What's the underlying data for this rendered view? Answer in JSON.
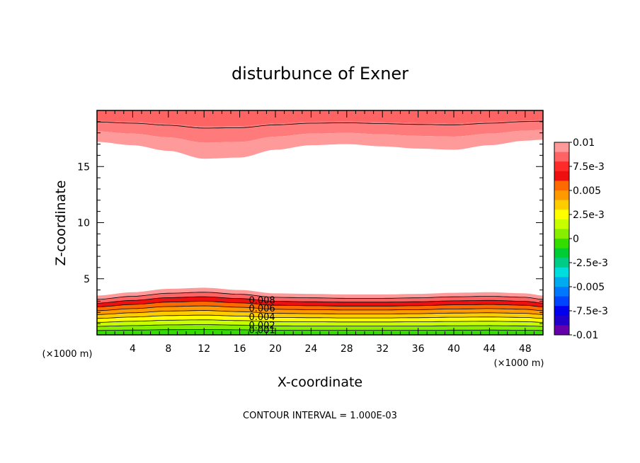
{
  "chart_data": {
    "type": "heatmap",
    "title": "disturbunce of Exner",
    "xlabel": "X-coordinate",
    "ylabel": "Z-coordinate",
    "x_unit": "(×1000 m)",
    "xlim": [
      0,
      50
    ],
    "ylim": [
      0,
      20
    ],
    "x_ticks": [
      4,
      8,
      12,
      16,
      20,
      24,
      28,
      32,
      36,
      40,
      44,
      48
    ],
    "y_ticks": [
      5,
      10,
      15
    ],
    "contour_interval_text": "CONTOUR INTERVAL = 1.000E-03",
    "contour_labels": [
      "0.008",
      "0.006",
      "0.004",
      "0.002",
      "0.001"
    ],
    "colorbar": {
      "labels": [
        "0.01",
        "7.5e-3",
        "0.005",
        "2.5e-3",
        "0",
        "-2.5e-3",
        "-0.005",
        "-7.5e-3",
        "-0.01"
      ],
      "colors_top_to_bottom": [
        "#ff9a9a",
        "#ff6464",
        "#ff2a2a",
        "#ee1010",
        "#ff6a00",
        "#ff9900",
        "#ffcc00",
        "#ffff00",
        "#c8ff00",
        "#88ee00",
        "#33dd00",
        "#00cc33",
        "#00cc88",
        "#00dddd",
        "#00aaee",
        "#0077ff",
        "#0044ff",
        "#0000ee",
        "#2200cc",
        "#6600aa"
      ]
    },
    "lower_band": {
      "levels": [
        0.001,
        0.002,
        0.003,
        0.004,
        0.005,
        0.006,
        0.007,
        0.008,
        0.009,
        0.01
      ],
      "colors": [
        "#33dd00",
        "#88ee00",
        "#c8ff00",
        "#ffff00",
        "#ffcc00",
        "#ff9900",
        "#ff6a00",
        "#ee1010",
        "#ff6464",
        "#ff9a9a"
      ],
      "top_z_profile": {
        "x": [
          0,
          4,
          8,
          12,
          16,
          20,
          24,
          28,
          32,
          36,
          40,
          44,
          48,
          50
        ],
        "z": [
          3.5,
          3.8,
          4.1,
          4.2,
          4.0,
          3.7,
          3.65,
          3.6,
          3.6,
          3.65,
          3.75,
          3.8,
          3.7,
          3.5
        ]
      }
    },
    "upper_band": {
      "colors_top_to_bottom": [
        "#ff6464",
        "#ff7a7a",
        "#ff9a9a"
      ],
      "bottom_z_profile": {
        "x": [
          0,
          4,
          8,
          12,
          16,
          20,
          24,
          28,
          32,
          36,
          40,
          44,
          48,
          50
        ],
        "z": [
          17.2,
          16.9,
          16.4,
          15.7,
          15.8,
          16.5,
          16.9,
          17.0,
          16.8,
          16.6,
          16.5,
          16.9,
          17.3,
          17.4
        ]
      }
    }
  }
}
